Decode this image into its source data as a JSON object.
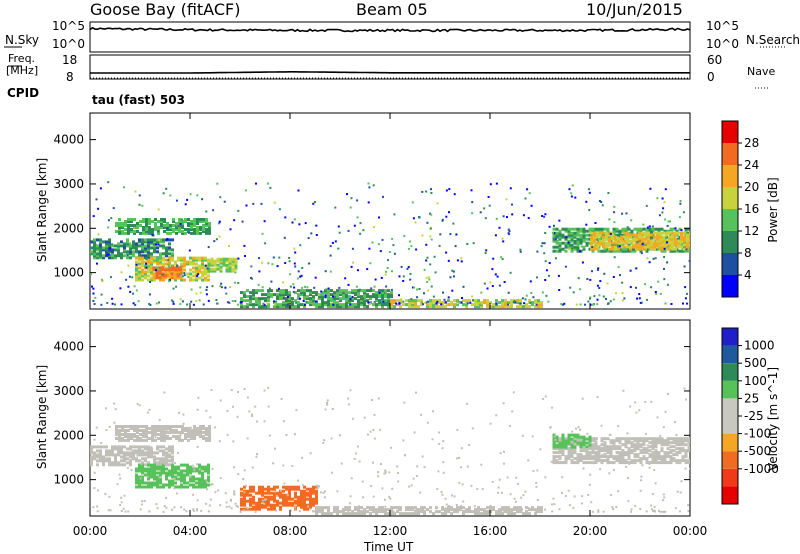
{
  "header": {
    "station": "Goose Bay (fitACF)",
    "beam": "Beam 05",
    "date": "10/Jun/2015"
  },
  "top_panels": {
    "nsky_label": "N.Sky",
    "nsearch_label": "N.Search",
    "noise_ticks": [
      "10^5",
      "10^0"
    ],
    "freq_label": "Freq.",
    "freq_unit": "[MHz]",
    "freq_ticks": [
      "18",
      "8"
    ],
    "nave_label": "Nave",
    "nave_ticks": [
      "60",
      "0"
    ],
    "cpid_label": "CPID",
    "cpid_value": "tau (fast) 503"
  },
  "colors": {
    "power_scale": [
      "#0000ff",
      "#1f4fa0",
      "#2e8b57",
      "#57c25a",
      "#c8d23c",
      "#f5a623",
      "#f26b22",
      "#e60000"
    ],
    "velocity_scale": [
      "#2020c8",
      "#1f5a9c",
      "#2e8b57",
      "#57c25a",
      "#c8c8c0",
      "#c8c8c0",
      "#f5a623",
      "#f26b22",
      "#f03a1a",
      "#e60000"
    ],
    "ground_scatter": "#c0c0b8"
  },
  "chart_data": [
    {
      "type": "line",
      "title": "N.Sky / N.Search",
      "x": [
        "00:00",
        "04:00",
        "08:00",
        "12:00",
        "16:00",
        "20:00",
        "00:00"
      ],
      "series": [
        {
          "name": "N.Sky",
          "values": [
            3.9,
            3.7,
            3.6,
            3.6,
            3.6,
            3.6,
            3.8
          ]
        },
        {
          "name": "N.Search",
          "values": [
            0.0,
            0.0,
            0.0,
            0.0,
            0.0,
            0.0,
            0.0
          ]
        }
      ],
      "ylim": [
        0,
        5
      ]
    },
    {
      "type": "line",
      "title": "Freq. / Nave",
      "x": [
        "00:00",
        "04:00",
        "08:00",
        "12:00",
        "16:00",
        "20:00",
        "00:00"
      ],
      "series": [
        {
          "name": "Freq.",
          "values": [
            10.5,
            10.5,
            11.0,
            10.6,
            10.6,
            10.6,
            10.6
          ]
        },
        {
          "name": "Nave",
          "values": [
            0,
            0,
            0,
            0,
            0,
            0,
            0
          ]
        }
      ],
      "ylim": [
        8,
        18
      ]
    },
    {
      "type": "heatmap",
      "title": "Power",
      "xlabel": "Time UT",
      "ylabel": "Slant Range [km]",
      "x_ticks": [
        "00:00",
        "04:00",
        "08:00",
        "12:00",
        "16:00",
        "20:00",
        "00:00"
      ],
      "y_ticks": [
        1000,
        2000,
        3000,
        4000
      ],
      "ylim": [
        180,
        4600
      ],
      "colorbar_label": "Power [dB]",
      "colorbar_ticks": [
        4,
        8,
        12,
        16,
        20,
        24,
        28
      ],
      "regions": [
        {
          "t0": 0.0,
          "t1": 3.3,
          "r0": 1300,
          "r1": 1750,
          "value": 12
        },
        {
          "t0": 1.0,
          "t1": 4.8,
          "r0": 1850,
          "r1": 2200,
          "value": 14
        },
        {
          "t0": 1.8,
          "t1": 4.8,
          "r0": 800,
          "r1": 1300,
          "value": 20
        },
        {
          "t0": 2.5,
          "t1": 3.6,
          "r0": 850,
          "r1": 1100,
          "value": 26
        },
        {
          "t0": 4.7,
          "t1": 5.8,
          "r0": 1000,
          "r1": 1300,
          "value": 18
        },
        {
          "t0": 6.0,
          "t1": 12.0,
          "r0": 200,
          "r1": 600,
          "value": 14
        },
        {
          "t0": 12.0,
          "t1": 18.0,
          "r0": 200,
          "r1": 380,
          "value": 20
        },
        {
          "t0": 18.5,
          "t1": 24.0,
          "r0": 1450,
          "r1": 1950,
          "value": 14
        },
        {
          "t0": 20.0,
          "t1": 24.0,
          "r0": 1500,
          "r1": 1900,
          "value": 22
        }
      ]
    },
    {
      "type": "heatmap",
      "title": "Velocity",
      "xlabel": "Time UT",
      "ylabel": "Slant Range [km]",
      "x_ticks": [
        "00:00",
        "04:00",
        "08:00",
        "12:00",
        "16:00",
        "20:00",
        "00:00"
      ],
      "y_ticks": [
        1000,
        2000,
        3000,
        4000
      ],
      "ylim": [
        180,
        4600
      ],
      "colorbar_label": "Velocity [m s^-1]",
      "colorbar_ticks": [
        1000,
        500,
        100,
        25,
        -25,
        -100,
        -500,
        -1000
      ],
      "regions": [
        {
          "t0": 0.0,
          "t1": 3.3,
          "r0": 1300,
          "r1": 1750,
          "value": 0
        },
        {
          "t0": 1.0,
          "t1": 4.8,
          "r0": 1850,
          "r1": 2200,
          "value": 0
        },
        {
          "t0": 1.8,
          "t1": 4.8,
          "r0": 800,
          "r1": 1300,
          "value": 150
        },
        {
          "t0": 6.0,
          "t1": 9.0,
          "r0": 300,
          "r1": 800,
          "value": -200
        },
        {
          "t0": 9.0,
          "t1": 18.0,
          "r0": 200,
          "r1": 380,
          "value": 0
        },
        {
          "t0": 18.5,
          "t1": 24.0,
          "r0": 1350,
          "r1": 1900,
          "value": 0
        },
        {
          "t0": 18.5,
          "t1": 20.0,
          "r0": 1700,
          "r1": 2000,
          "value": 150
        }
      ]
    }
  ]
}
